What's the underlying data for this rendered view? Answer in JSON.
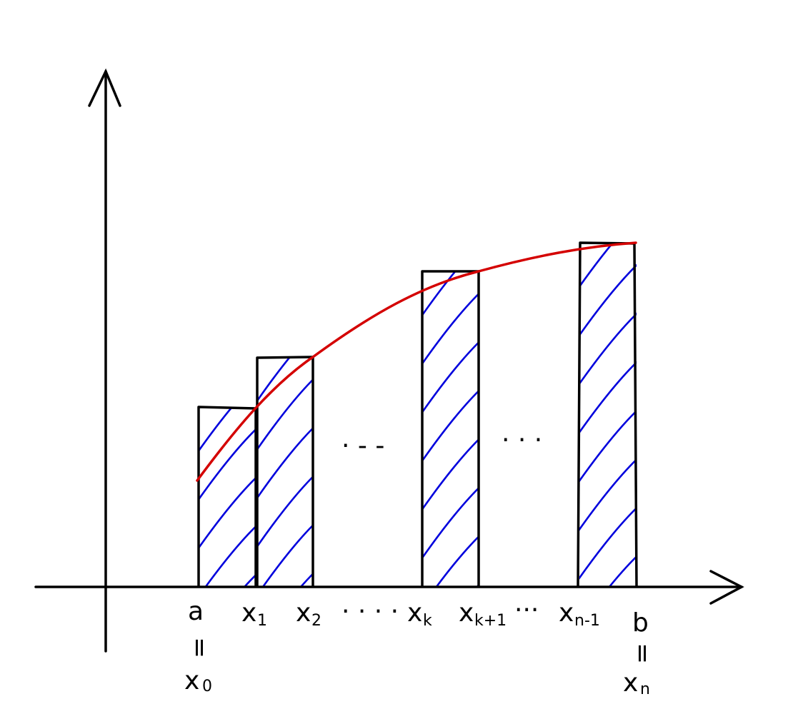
{
  "diagram": {
    "labels": {
      "a": "a",
      "x0": "x",
      "x0_sub": "0",
      "equals_a": "=",
      "x1": "x",
      "x1_sub": "1",
      "x2": "x",
      "x2_sub": "2",
      "dots_1": "· · · ·",
      "xk": "x",
      "xk_sub": "k",
      "xk1": "x",
      "xk1_sub": "k+1",
      "dots_2": "···",
      "xn1": "x",
      "xn1_sub": "n-1",
      "b": "b",
      "equals_b": "=",
      "xn": "x",
      "xn_sub": "n",
      "mid_dots_1": "· - -",
      "mid_dots_2": "· · ·"
    },
    "colors": {
      "axes": "#000000",
      "curve": "#d40000",
      "hatch": "#0000dd"
    }
  }
}
